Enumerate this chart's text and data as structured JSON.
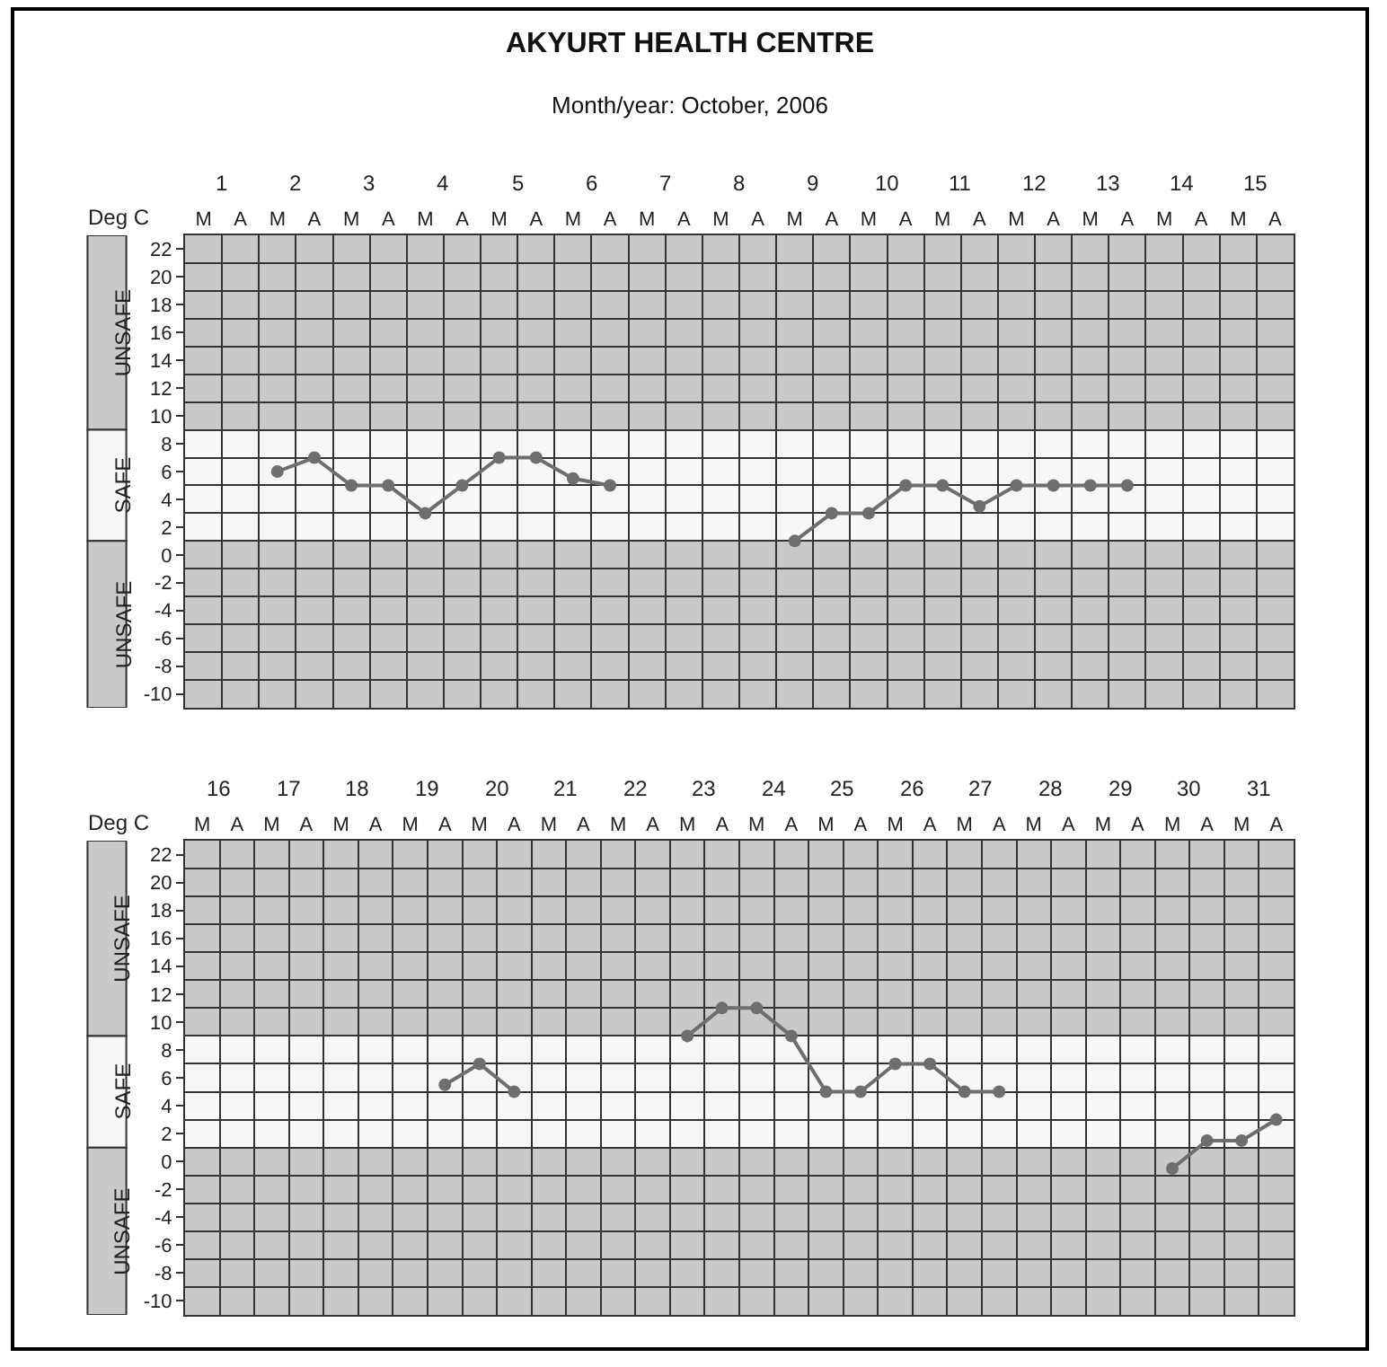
{
  "chart_data": [
    {
      "type": "line",
      "title": "AKYURT HEALTH CENTRE",
      "subtitle": "Month/year: October, 2006",
      "ylabel": "Deg C",
      "categories": [
        "M",
        "A",
        "M",
        "A",
        "M",
        "A",
        "M",
        "A",
        "M",
        "A",
        "M",
        "A",
        "M",
        "A",
        "M",
        "A",
        "M",
        "A",
        "M",
        "A",
        "M",
        "A",
        "M",
        "A",
        "M",
        "A",
        "M",
        "A",
        "M",
        "A"
      ],
      "x2lim": [
        0.5,
        15.5
      ],
      "x2ticks": [
        1,
        2,
        3,
        4,
        5,
        6,
        7,
        8,
        9,
        10,
        11,
        12,
        13,
        14,
        15
      ],
      "ylim": [
        -11,
        23
      ],
      "yticks": [
        -10,
        -8,
        -6,
        -4,
        -2,
        0,
        2,
        4,
        6,
        8,
        10,
        12,
        14,
        16,
        18,
        20,
        22
      ],
      "bands": [
        {
          "axis": "y",
          "from": 9,
          "to": 23,
          "label": "UNSAFE",
          "color": "#c9c9c9"
        },
        {
          "axis": "y",
          "from": 1,
          "to": 9,
          "label": "SAFE",
          "color": "#f7f7f7"
        },
        {
          "axis": "y",
          "from": -11,
          "to": 1,
          "label": "UNSAFE",
          "color": "#c9c9c9"
        }
      ],
      "series": [
        {
          "color": "#6e6e6e",
          "values": [
            null,
            null,
            6,
            7,
            5,
            5,
            3,
            5,
            7,
            7,
            5.5,
            5,
            null,
            null,
            null,
            null,
            1,
            3,
            3,
            5,
            5,
            3.5,
            5,
            5,
            5,
            5,
            null,
            null,
            null,
            null
          ]
        }
      ],
      "marker": "circle",
      "grid": true
    },
    {
      "type": "line",
      "ylabel": "Deg C",
      "categories": [
        "M",
        "A",
        "M",
        "A",
        "M",
        "A",
        "M",
        "A",
        "M",
        "A",
        "M",
        "A",
        "M",
        "A",
        "M",
        "A",
        "M",
        "A",
        "M",
        "A",
        "M",
        "A",
        "M",
        "A",
        "M",
        "A",
        "M",
        "A",
        "M",
        "A",
        "M",
        "A"
      ],
      "x2lim": [
        15.5,
        31.5
      ],
      "x2ticks": [
        16,
        17,
        18,
        19,
        20,
        21,
        22,
        23,
        24,
        25,
        26,
        27,
        28,
        29,
        30,
        31
      ],
      "ylim": [
        -11,
        23
      ],
      "yticks": [
        -10,
        -8,
        -6,
        -4,
        -2,
        0,
        2,
        4,
        6,
        8,
        10,
        12,
        14,
        16,
        18,
        20,
        22
      ],
      "bands": [
        {
          "axis": "y",
          "from": 9,
          "to": 23,
          "label": "UNSAFE",
          "color": "#c9c9c9"
        },
        {
          "axis": "y",
          "from": 1,
          "to": 9,
          "label": "SAFE",
          "color": "#f7f7f7"
        },
        {
          "axis": "y",
          "from": -11,
          "to": 1,
          "label": "UNSAFE",
          "color": "#c9c9c9"
        }
      ],
      "series": [
        {
          "color": "#6e6e6e",
          "values": [
            null,
            null,
            null,
            null,
            null,
            null,
            null,
            5.5,
            7,
            5,
            null,
            null,
            null,
            null,
            9,
            11,
            11,
            9,
            5,
            5,
            7,
            7,
            5,
            5,
            null,
            null,
            null,
            null,
            -0.5,
            1.5,
            1.5,
            3
          ]
        }
      ],
      "marker": "circle",
      "grid": true
    }
  ]
}
